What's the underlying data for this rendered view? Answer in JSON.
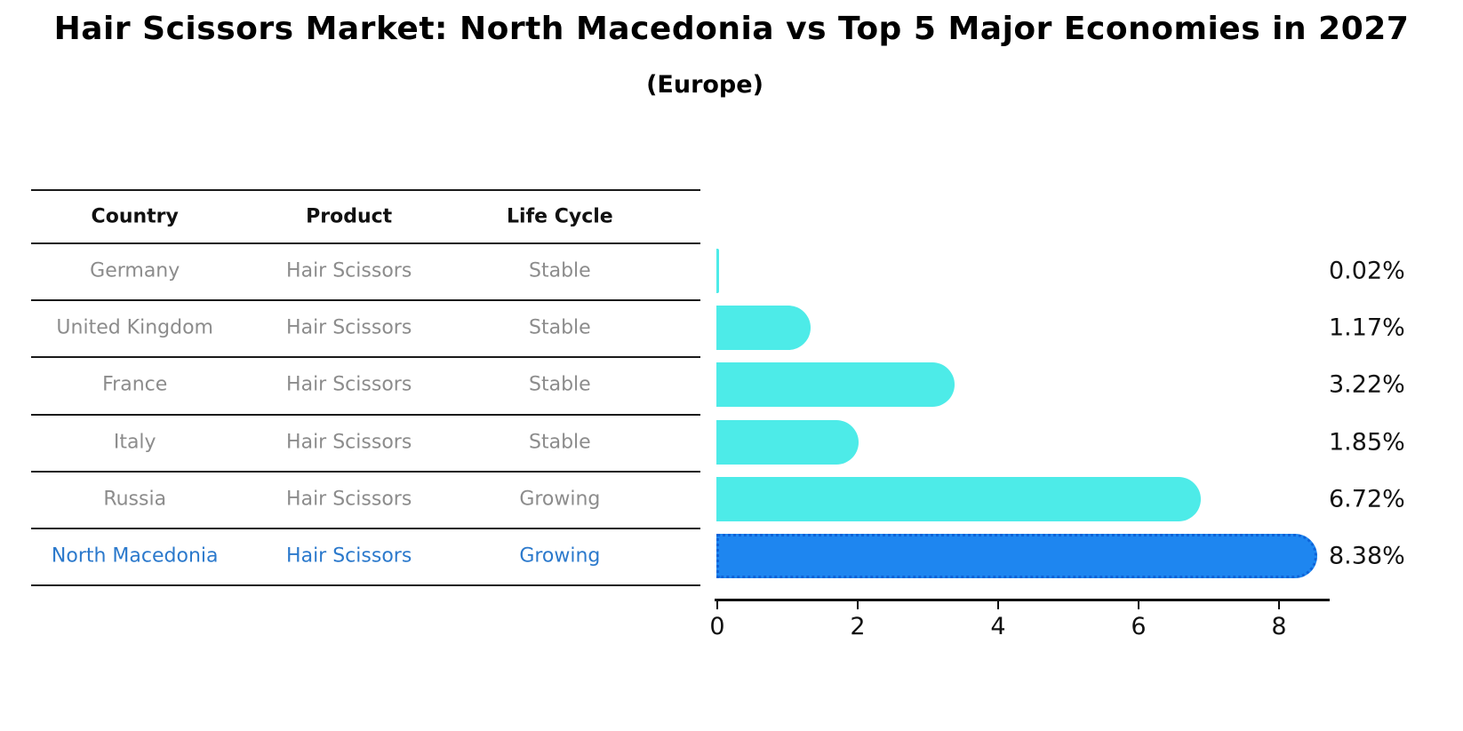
{
  "title": "Hair Scissors Market: North Macedonia vs Top 5 Major Economies in 2027",
  "subtitle": "(Europe)",
  "table": {
    "headers": [
      "Country",
      "Product",
      "Life Cycle"
    ],
    "rows": [
      {
        "country": "Germany",
        "product": "Hair Scissors",
        "life_cycle": "Stable",
        "highlight": false
      },
      {
        "country": "United Kingdom",
        "product": "Hair Scissors",
        "life_cycle": "Stable",
        "highlight": false
      },
      {
        "country": "France",
        "product": "Hair Scissors",
        "life_cycle": "Stable",
        "highlight": false
      },
      {
        "country": "Italy",
        "product": "Hair Scissors",
        "life_cycle": "Stable",
        "highlight": false
      },
      {
        "country": "Russia",
        "product": "Hair Scissors",
        "life_cycle": "Growing",
        "highlight": false
      },
      {
        "country": "North Macedonia",
        "product": "Hair Scissors",
        "life_cycle": "Growing",
        "highlight": true
      }
    ]
  },
  "chart_data": {
    "type": "bar",
    "orientation": "horizontal",
    "title": "Hair Scissors Market: North Macedonia vs Top 5 Major Economies in 2027 (Europe)",
    "categories": [
      "Germany",
      "United Kingdom",
      "France",
      "Italy",
      "Russia",
      "North Macedonia"
    ],
    "values": [
      0.02,
      1.17,
      3.22,
      1.85,
      6.72,
      8.38
    ],
    "labels": [
      "0.02%",
      "1.17%",
      "3.22%",
      "1.85%",
      "6.72%",
      "8.38%"
    ],
    "units": "percent",
    "xticks": [
      "0",
      "2",
      "4",
      "6",
      "8"
    ],
    "xtick_values": [
      0,
      2,
      4,
      6,
      8
    ],
    "xlim": [
      0,
      8.8
    ],
    "grid": false,
    "legend": false,
    "colors": {
      "bar": "#4DEBE8",
      "highlight_bar": "#1E86F0",
      "highlight_border": "#0d63d8",
      "highlight_text": "#2b79cc",
      "row_text": "#8c8c8c",
      "header_text": "#111111",
      "line": "#1a1a1a"
    }
  }
}
